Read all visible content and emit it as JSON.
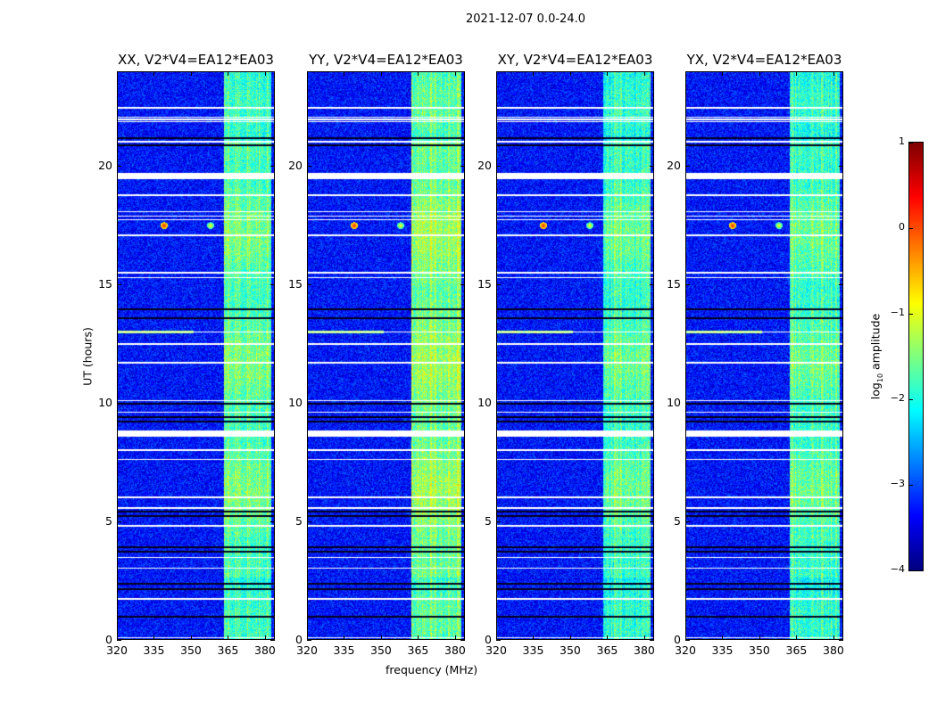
{
  "chart_data": {
    "type": "heatmap",
    "title": "2021-12-07 0.0-24.0",
    "xlabel": "frequency (MHz)",
    "ylabel": "UT (hours)",
    "xlim": [
      320,
      384
    ],
    "ylim": [
      0,
      24
    ],
    "xticks": [
      "320",
      "335",
      "350",
      "365",
      "380"
    ],
    "yticks": [
      "0",
      "5",
      "10",
      "15",
      "20"
    ],
    "colormap": "jet",
    "colorbar": {
      "label_prefix": "log",
      "label_sub": "10",
      "label_suffix": " amplitude",
      "range": [
        -4,
        1
      ],
      "ticks": [
        "1",
        "0",
        "−1",
        "−2",
        "−3",
        "−4"
      ]
    },
    "panels": [
      {
        "title": "XX, V2*V4=EA12*EA03",
        "band_mhz": [
          363.5,
          383
        ],
        "band_level": -1.9
      },
      {
        "title": "YY, V2*V4=EA12*EA03",
        "band_mhz": [
          362.5,
          383
        ],
        "band_level": -1.75
      },
      {
        "title": "XY, V2*V4=EA12*EA03",
        "band_mhz": [
          363.5,
          383
        ],
        "band_level": -2.0
      },
      {
        "title": "YX, V2*V4=EA12*EA03",
        "band_mhz": [
          362.5,
          383
        ],
        "band_level": -2.0
      }
    ],
    "background_level": -3.3,
    "flagged_white_ut": [
      22.5,
      22.1,
      22.0,
      21.9,
      21.05,
      19.6,
      18.8,
      18.1,
      17.9,
      17.75,
      17.1,
      15.5,
      15.3,
      13.0,
      12.5,
      11.7,
      10.1,
      9.6,
      8.7,
      8.0,
      7.6,
      6.0,
      5.55,
      4.8,
      3.45,
      3.0,
      1.7,
      0.05
    ],
    "thick_white_ut": [
      19.6,
      8.7
    ],
    "dark_rows_ut": [
      21.2,
      20.9,
      13.95,
      13.6,
      9.95,
      9.4,
      9.2,
      5.4,
      5.2,
      3.9,
      3.7,
      2.35,
      2.1,
      0.95
    ],
    "rfi_events": [
      {
        "ut": 17.5,
        "mhz": 339,
        "level": 0.3
      },
      {
        "ut": 17.5,
        "mhz": 358,
        "level": -0.8
      },
      {
        "ut": 13.0,
        "mhz_range": [
          320,
          351
        ],
        "level": -1.3
      }
    ]
  }
}
